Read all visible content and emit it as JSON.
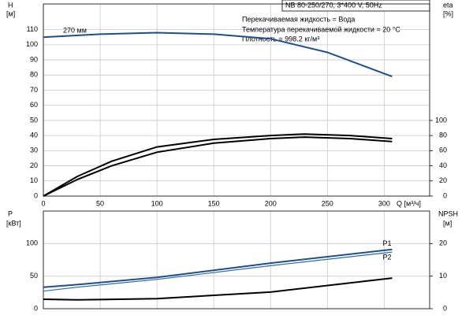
{
  "chart_data": [
    {
      "type": "line",
      "title": "NB 80-250/270, 3*400 V, 50Hz",
      "annotations": [
        "Перекачиваемая жидкость = Вода",
        "Температура перекачиваемой жидкости = 20 °C",
        "Плотность = 998.2 кг/м³"
      ],
      "ylabel": "H",
      "yunit": "[м]",
      "y2label": "eta",
      "y2unit": "[%]",
      "xlabel": "Q [м³/ч]",
      "xlim": [
        0,
        340
      ],
      "xticks": [
        0,
        50,
        100,
        150,
        200,
        250,
        300
      ],
      "ylim": [
        0,
        127
      ],
      "yticks": [
        0,
        10,
        20,
        30,
        40,
        50,
        60,
        70,
        80,
        90,
        100,
        110
      ],
      "y2lim": [
        0,
        254
      ],
      "y2ticks": [
        0,
        20,
        40,
        60,
        80,
        100
      ],
      "grid": true,
      "series": [
        {
          "name": "270 мм",
          "label_position": "start",
          "color": "#1f4e8c",
          "width": 2,
          "x": [
            0,
            50,
            100,
            150,
            200,
            250,
            307
          ],
          "values": [
            105,
            107,
            108,
            107,
            104,
            95,
            79
          ]
        },
        {
          "color": "#000000",
          "width": 2,
          "axis": "y2",
          "x": [
            0,
            30,
            60,
            100,
            150,
            200,
            230,
            270,
            307
          ],
          "values": [
            0,
            26,
            46,
            65,
            75,
            80,
            82,
            80,
            76
          ]
        },
        {
          "color": "#000000",
          "width": 2,
          "axis": "y2",
          "x": [
            0,
            30,
            60,
            100,
            150,
            200,
            230,
            270,
            307
          ],
          "values": [
            0,
            22,
            40,
            58,
            70,
            76,
            78,
            76,
            72
          ]
        }
      ]
    },
    {
      "type": "line",
      "ylabel": "P",
      "yunit": "[кВт]",
      "y2label": "NPSH",
      "y2unit": "[м]",
      "xlim": [
        0,
        340
      ],
      "ylim": [
        0,
        150
      ],
      "yticks": [
        0,
        50,
        100
      ],
      "y2lim": [
        0,
        30
      ],
      "y2ticks": [
        0,
        10,
        20
      ],
      "grid": true,
      "series": [
        {
          "name": "P1",
          "label_position": "end",
          "color": "#1f4e8c",
          "width": 2,
          "x": [
            0,
            30,
            100,
            200,
            307
          ],
          "values": [
            33,
            37,
            48,
            70,
            91
          ]
        },
        {
          "name": "P2",
          "label_position": "end",
          "color": "#2a6aa8",
          "width": 1.2,
          "x": [
            0,
            30,
            100,
            200,
            307
          ],
          "values": [
            27,
            33,
            45,
            66,
            87
          ]
        },
        {
          "color": "#000000",
          "width": 2,
          "axis": "y2",
          "x": [
            0,
            30,
            100,
            200,
            307
          ],
          "values": [
            2.9,
            2.7,
            3.1,
            5.1,
            9.4
          ]
        }
      ]
    }
  ]
}
